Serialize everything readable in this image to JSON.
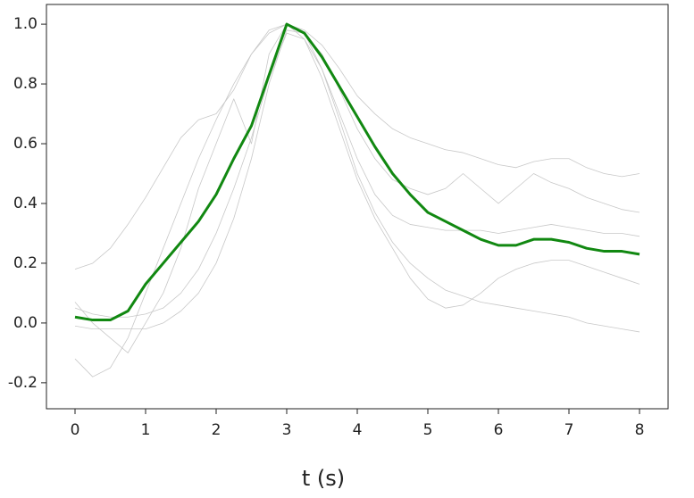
{
  "chart_data": {
    "type": "line",
    "xlabel": "t (s)",
    "x": [
      0,
      0.25,
      0.5,
      0.75,
      1,
      1.25,
      1.5,
      1.75,
      2,
      2.25,
      2.5,
      2.75,
      3,
      3.25,
      3.5,
      3.75,
      4,
      4.25,
      4.5,
      4.75,
      5,
      5.25,
      5.5,
      5.75,
      6,
      6.25,
      6.5,
      6.75,
      7,
      7.25,
      7.5,
      7.75,
      8
    ],
    "series": [
      {
        "color": "#c8c8c8",
        "width": 0.8,
        "values": [
          0.18,
          0.2,
          0.25,
          0.33,
          0.42,
          0.52,
          0.62,
          0.68,
          0.7,
          0.78,
          0.9,
          0.98,
          1.0,
          0.98,
          0.93,
          0.85,
          0.76,
          0.7,
          0.65,
          0.62,
          0.6,
          0.58,
          0.57,
          0.55,
          0.53,
          0.52,
          0.54,
          0.55,
          0.55,
          0.52,
          0.5,
          0.49,
          0.5
        ]
      },
      {
        "color": "#c8c8c8",
        "width": 0.8,
        "values": [
          -0.12,
          -0.18,
          -0.15,
          -0.05,
          0.1,
          0.25,
          0.4,
          0.55,
          0.68,
          0.8,
          0.9,
          0.97,
          1.0,
          0.97,
          0.9,
          0.78,
          0.65,
          0.55,
          0.48,
          0.45,
          0.43,
          0.45,
          0.5,
          0.45,
          0.4,
          0.45,
          0.5,
          0.47,
          0.45,
          0.42,
          0.4,
          0.38,
          0.37
        ]
      },
      {
        "color": "#c8c8c8",
        "width": 0.8,
        "values": [
          0.07,
          0.0,
          -0.05,
          -0.1,
          0.0,
          0.1,
          0.25,
          0.45,
          0.6,
          0.75,
          0.6,
          0.9,
          1.0,
          0.95,
          0.85,
          0.7,
          0.55,
          0.43,
          0.36,
          0.33,
          0.32,
          0.31,
          0.31,
          0.31,
          0.3,
          0.31,
          0.32,
          0.33,
          0.32,
          0.31,
          0.3,
          0.3,
          0.29
        ]
      },
      {
        "color": "#c8c8c8",
        "width": 0.8,
        "values": [
          -0.01,
          -0.02,
          -0.02,
          -0.02,
          -0.02,
          0.0,
          0.04,
          0.1,
          0.2,
          0.35,
          0.55,
          0.8,
          0.98,
          0.97,
          0.85,
          0.68,
          0.5,
          0.37,
          0.27,
          0.2,
          0.15,
          0.11,
          0.09,
          0.07,
          0.06,
          0.05,
          0.04,
          0.03,
          0.02,
          0.0,
          -0.01,
          -0.02,
          -0.03
        ]
      },
      {
        "color": "#c8c8c8",
        "width": 0.8,
        "values": [
          0.05,
          0.03,
          0.02,
          0.02,
          0.03,
          0.05,
          0.1,
          0.18,
          0.3,
          0.45,
          0.62,
          0.82,
          0.97,
          0.95,
          0.82,
          0.65,
          0.48,
          0.35,
          0.25,
          0.15,
          0.08,
          0.05,
          0.06,
          0.1,
          0.15,
          0.18,
          0.2,
          0.21,
          0.21,
          0.19,
          0.17,
          0.15,
          0.13
        ]
      },
      {
        "color": "#118811",
        "width": 3,
        "values": [
          0.02,
          0.01,
          0.01,
          0.04,
          0.13,
          0.2,
          0.27,
          0.34,
          0.43,
          0.55,
          0.66,
          0.83,
          1.0,
          0.97,
          0.89,
          0.79,
          0.69,
          0.59,
          0.5,
          0.43,
          0.37,
          0.34,
          0.31,
          0.28,
          0.26,
          0.26,
          0.28,
          0.28,
          0.27,
          0.25,
          0.24,
          0.24,
          0.23
        ]
      }
    ],
    "xlim": [
      -0.405,
      8.405
    ],
    "ylim": [
      -0.287,
      1.066
    ],
    "xticks": [
      0,
      1,
      2,
      3,
      4,
      5,
      6,
      7,
      8
    ],
    "yticks": [
      -0.2,
      {
        "value": 0,
        "label": "0.0"
      },
      0.2,
      0.4,
      0.6,
      0.8,
      {
        "value": 1,
        "label": "1.0"
      }
    ]
  }
}
